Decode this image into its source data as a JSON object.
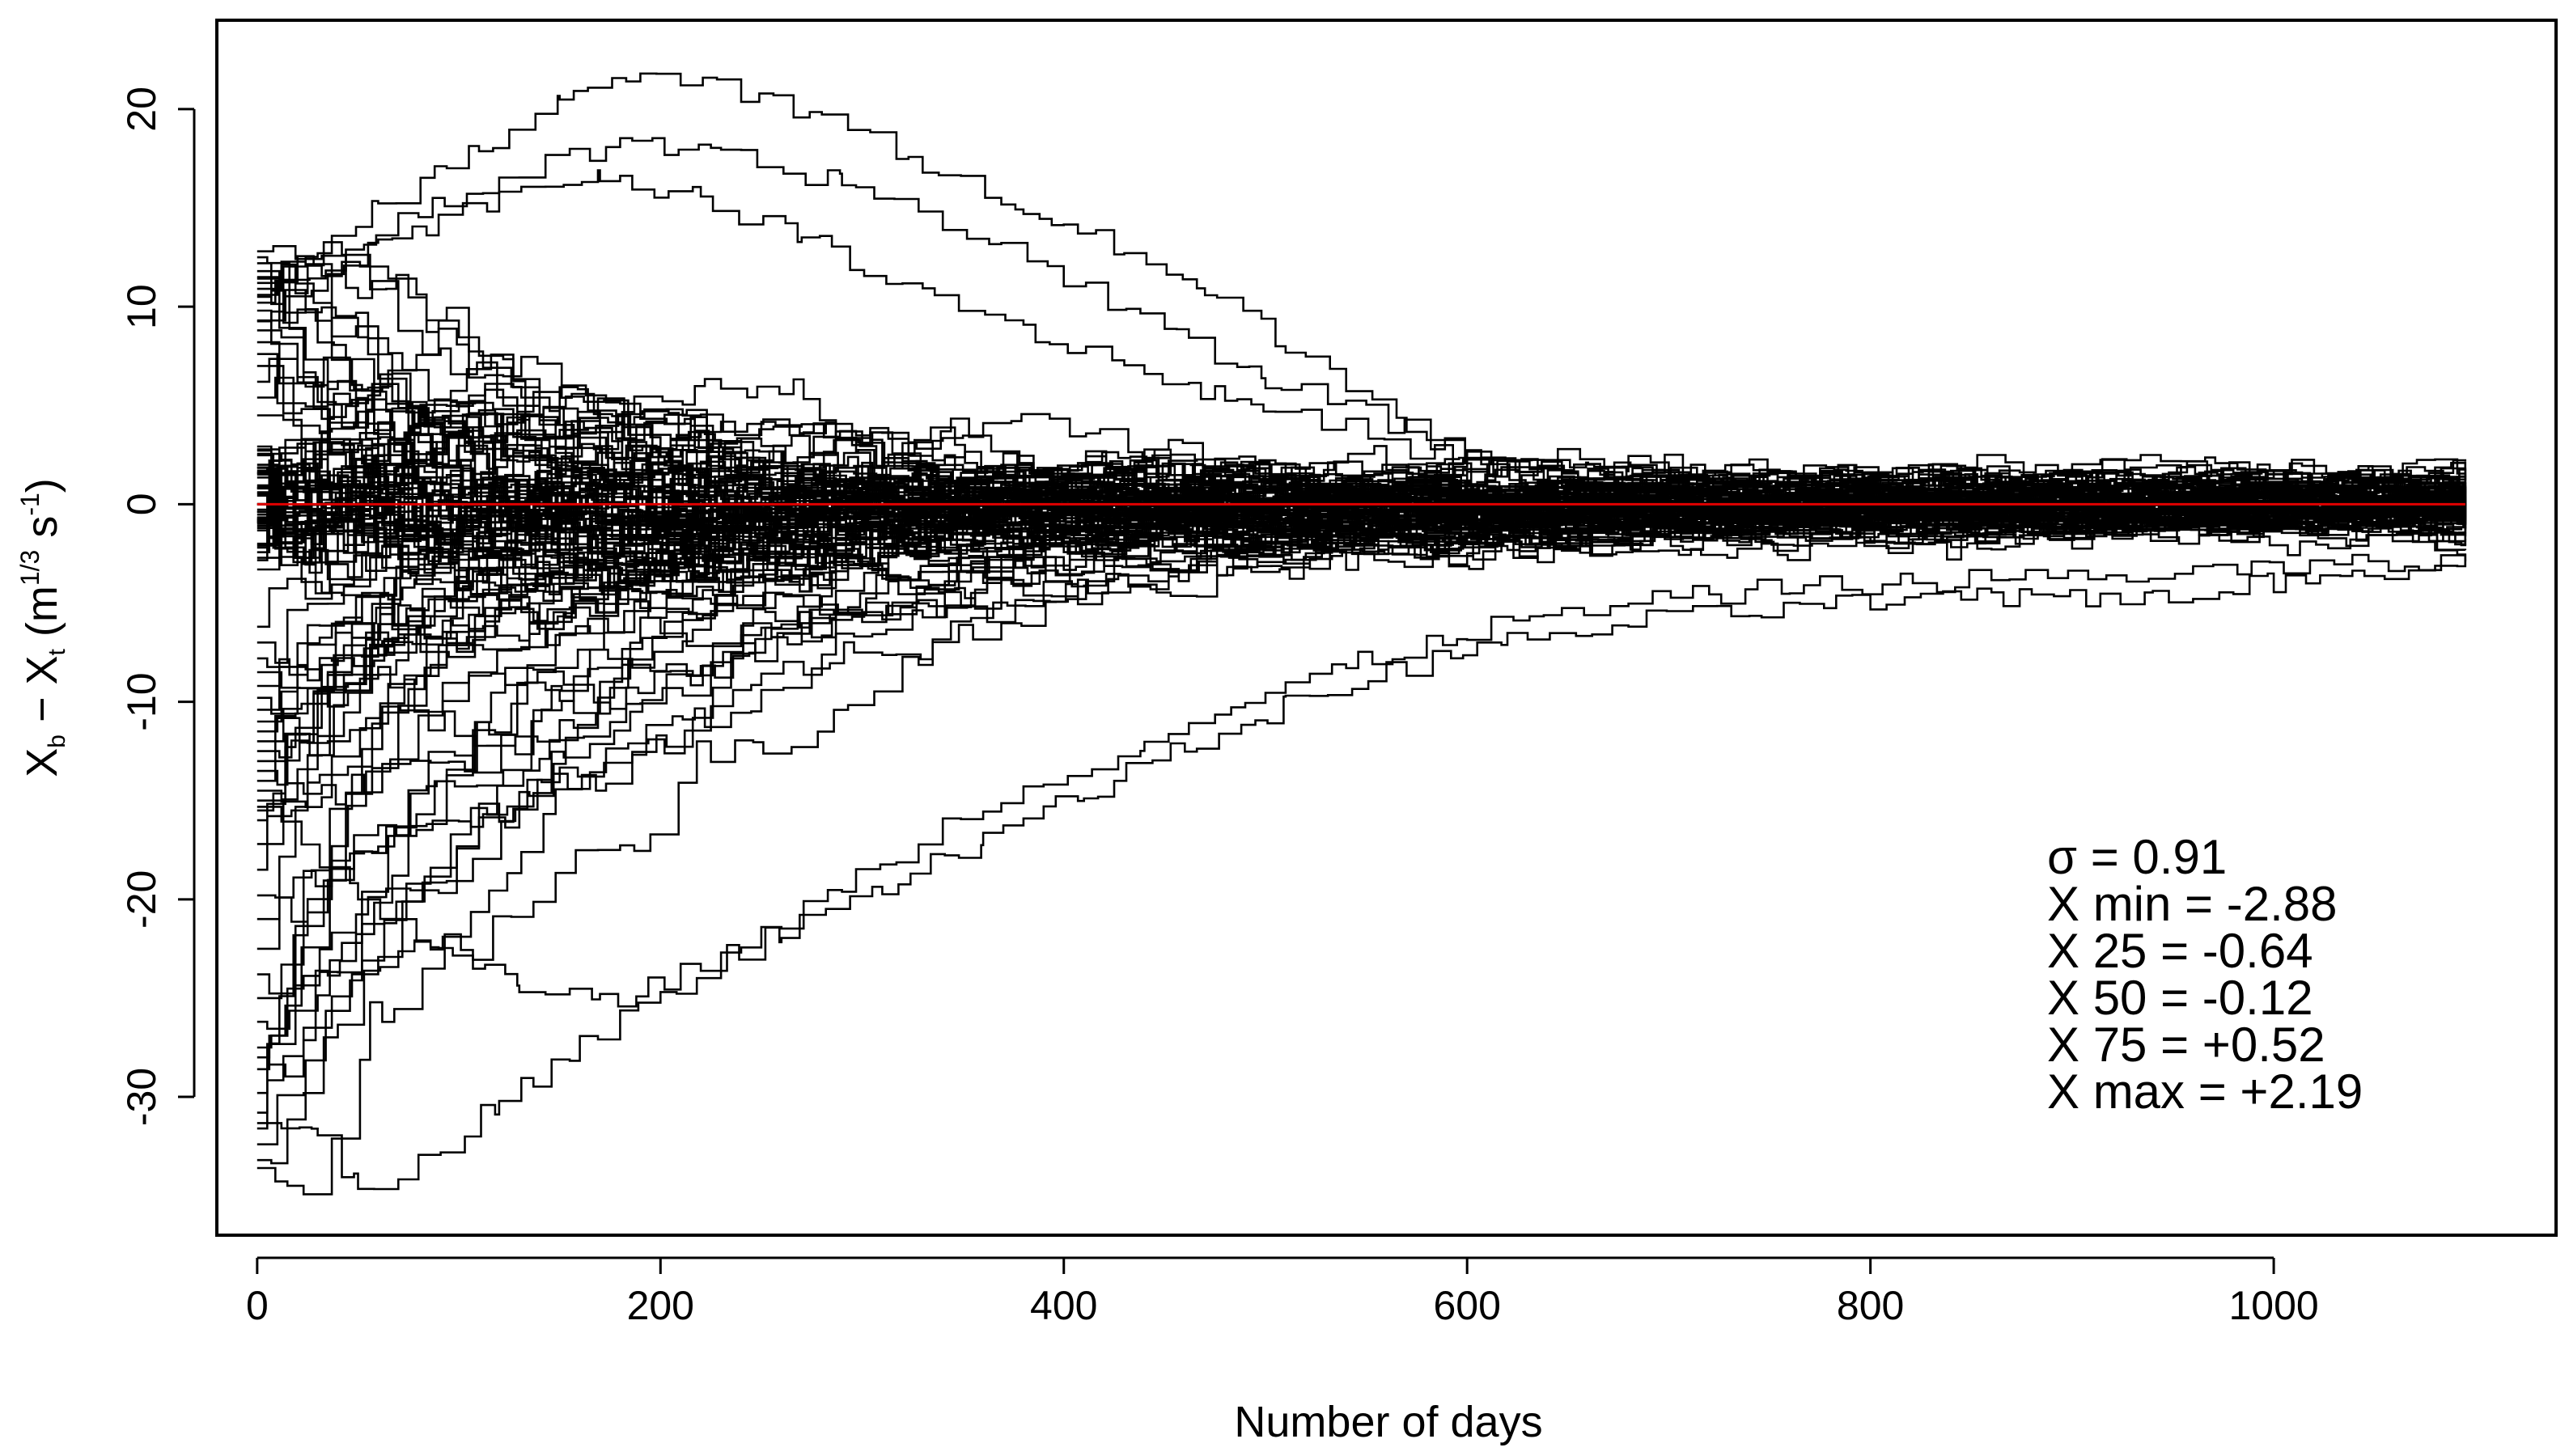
{
  "chart_data": {
    "type": "line",
    "xlabel": "Number of days",
    "ylabel": {
      "base": "X",
      "sub1": "b",
      "minus": " − ",
      "sub2": "t",
      "unit_open": " (m",
      "unit_exp1": "1/3",
      "unit_mid": " s",
      "unit_exp2": "-1",
      "unit_close": ")"
    },
    "xlim": [
      -20,
      1140
    ],
    "ylim": [
      -37,
      24.5
    ],
    "x_ticks": [
      0,
      200,
      400,
      600,
      800,
      1000
    ],
    "y_ticks": [
      -30,
      -20,
      -10,
      0,
      10,
      20
    ],
    "x_end": 1095,
    "grid": false,
    "reference_line": {
      "y": 0,
      "color": "#e00000"
    },
    "series_color": "#000000",
    "ensemble_start_values": [
      12.8,
      12.5,
      12.2,
      11.8,
      11.5,
      11.2,
      10.9,
      10.6,
      10.2,
      9.8,
      9.3,
      8.8,
      8.2,
      7.6,
      7.0,
      6.2,
      5.4,
      4.5,
      1.5,
      0.8,
      -1.2,
      -2.0,
      -3.3,
      -6.2,
      -7.0,
      -7.8,
      -8.5,
      -9.2,
      -9.8,
      -10.4,
      -11.0,
      -11.5,
      -12.0,
      -12.5,
      -13.0,
      -13.5,
      -14.0,
      -14.5,
      -15.0,
      -15.5,
      -16.0,
      -17.2,
      -18.5,
      -19.8,
      -21.0,
      -22.5,
      -23.8,
      -25.0,
      -26.2,
      -27.5,
      -28.0,
      -28.6,
      -29.8,
      -30.8,
      -31.6,
      -32.4,
      -33.2,
      -33.6
    ],
    "outer_paths": [
      [
        [
          0,
          11.2
        ],
        [
          60,
          15
        ],
        [
          110,
          18
        ],
        [
          150,
          20.8
        ],
        [
          190,
          21.8
        ],
        [
          240,
          20.8
        ],
        [
          280,
          19.5
        ],
        [
          330,
          17.2
        ],
        [
          380,
          14.8
        ],
        [
          430,
          12.8
        ],
        [
          470,
          10.6
        ],
        [
          510,
          8.2
        ],
        [
          540,
          6.0
        ],
        [
          570,
          4.2
        ],
        [
          600,
          2.6
        ],
        [
          660,
          1.6
        ],
        [
          720,
          1.6
        ],
        [
          800,
          1.4
        ],
        [
          900,
          1.2
        ],
        [
          1000,
          1.0
        ],
        [
          1095,
          0.8
        ]
      ],
      [
        [
          0,
          10.2
        ],
        [
          70,
          14.5
        ],
        [
          130,
          16.8
        ],
        [
          180,
          18.2
        ],
        [
          230,
          17.6
        ],
        [
          290,
          16.3
        ],
        [
          340,
          14.2
        ],
        [
          400,
          11.5
        ],
        [
          450,
          8.8
        ],
        [
          500,
          6.4
        ],
        [
          550,
          4.5
        ],
        [
          600,
          2.6
        ],
        [
          680,
          2.0
        ],
        [
          760,
          1.5
        ],
        [
          880,
          1.0
        ],
        [
          1000,
          0.5
        ],
        [
          1095,
          0.2
        ]
      ],
      [
        [
          0,
          9.8
        ],
        [
          60,
          13.2
        ],
        [
          120,
          15.6
        ],
        [
          170,
          16.8
        ],
        [
          220,
          15.4
        ],
        [
          270,
          13.5
        ],
        [
          320,
          11.2
        ],
        [
          380,
          8.9
        ],
        [
          430,
          7.0
        ],
        [
          480,
          5.4
        ],
        [
          540,
          3.8
        ],
        [
          600,
          2.0
        ],
        [
          700,
          1.2
        ],
        [
          800,
          0.8
        ],
        [
          900,
          0.5
        ],
        [
          1095,
          0.0
        ]
      ],
      [
        [
          0,
          -15.5
        ],
        [
          50,
          -20
        ],
        [
          90,
          -22.5
        ],
        [
          130,
          -24.5
        ],
        [
          170,
          -25.2
        ],
        [
          210,
          -23.8
        ],
        [
          260,
          -21.6
        ],
        [
          310,
          -19.2
        ],
        [
          360,
          -16.8
        ],
        [
          410,
          -14.6
        ],
        [
          460,
          -12.3
        ],
        [
          510,
          -10.2
        ],
        [
          560,
          -8.4
        ],
        [
          620,
          -7.0
        ],
        [
          680,
          -6.0
        ],
        [
          740,
          -5.4
        ],
        [
          800,
          -5.0
        ],
        [
          860,
          -4.8
        ],
        [
          940,
          -4.6
        ],
        [
          1000,
          -4.0
        ],
        [
          1095,
          -2.8
        ]
      ],
      [
        [
          0,
          -30.8
        ],
        [
          30,
          -32
        ],
        [
          50,
          -34.6
        ],
        [
          80,
          -33.2
        ],
        [
          120,
          -30.2
        ],
        [
          160,
          -27.4
        ],
        [
          200,
          -24.8
        ],
        [
          240,
          -22.4
        ],
        [
          290,
          -19.2
        ],
        [
          340,
          -16.2
        ],
        [
          390,
          -13.8
        ],
        [
          440,
          -12.0
        ],
        [
          490,
          -10.0
        ],
        [
          540,
          -8.2
        ],
        [
          600,
          -6.4
        ],
        [
          680,
          -5.0
        ],
        [
          760,
          -4.2
        ],
        [
          860,
          -3.8
        ],
        [
          960,
          -3.4
        ],
        [
          1095,
          -2.9
        ]
      ]
    ],
    "annotation": {
      "position": "bottom-right",
      "lines": [
        "σ = 0.91",
        "X min = -2.88",
        "X 25 = -0.64",
        "X 50 = -0.12",
        "X 75 = +0.52",
        "X max = +2.19"
      ]
    }
  }
}
